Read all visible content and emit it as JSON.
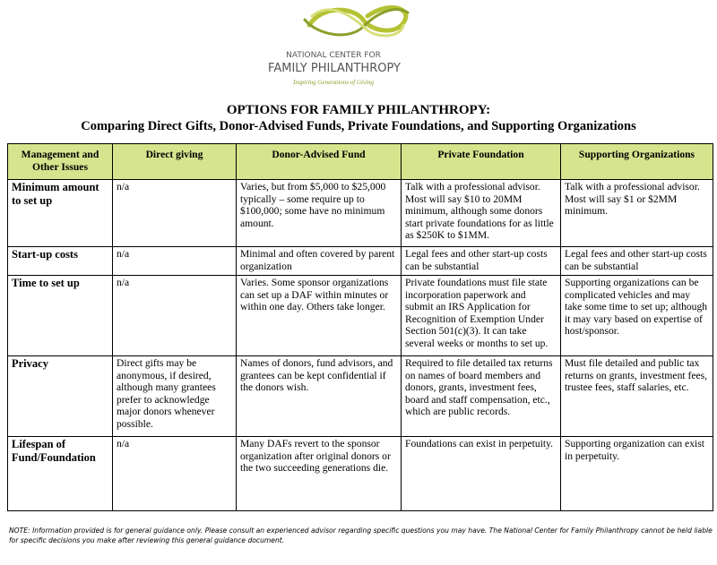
{
  "logo": {
    "line1": "NATIONAL CENTER FOR",
    "line2": "FAMILY PHILANTHROPY",
    "tagline": "Inspiring Generations of Giving"
  },
  "header": {
    "title": "OPTIONS FOR FAMILY PHILANTHROPY:",
    "subtitle": "Comparing Direct Gifts, Donor-Advised Funds, Private Foundations, and Supporting Organizations"
  },
  "table": {
    "columns": [
      "Management and Other Issues",
      "Direct giving",
      "Donor-Advised Fund",
      "Private Foundation",
      "Supporting Organizations"
    ],
    "rows": [
      [
        "Minimum amount to set up",
        "n/a",
        "Varies, but from $5,000 to $25,000 typically – some require up to $100,000; some have no minimum amount.",
        "Talk with a professional advisor. Most will say $10 to 20MM minimum, although some donors start private foundations for as little as $250K to $1MM.",
        "Talk with a professional advisor. Most will say $1 or $2MM minimum."
      ],
      [
        "Start-up costs",
        "n/a",
        "Minimal and often covered by parent organization",
        "Legal fees and other start-up costs can be substantial",
        "Legal fees and other start-up costs can be substantial"
      ],
      [
        "Time to set up",
        "n/a",
        "Varies. Some sponsor organizations can set up a DAF within minutes or within one day. Others take longer.",
        "Private foundations must file state incorporation paperwork and submit an IRS Application for Recognition of Exemption Under Section 501(c)(3). It can take several weeks or months to set up.",
        "Supporting organizations can be complicated vehicles and may take some time to set up; although it may vary based on expertise of host/sponsor."
      ],
      [
        "Privacy",
        "Direct gifts may be anonymous, if desired, although many grantees prefer to acknowledge major donors whenever possible.",
        "Names of donors, fund advisors, and grantees can be kept confidential if the donors wish.",
        "Required to file detailed tax returns on names of board members and donors, grants, investment fees, board and staff compensation, etc., which are public records.",
        "Must file detailed and public tax returns on grants, investment fees, trustee fees, staff salaries, etc."
      ],
      [
        "Lifespan of Fund/Foundation",
        "n/a",
        "Many DAFs revert to the sponsor organization after original donors or the two succeeding generations die.",
        "Foundations can exist in perpetuity.",
        "Supporting organization can exist in perpetuity."
      ]
    ]
  },
  "note": "NOTE: Information provided is for general guidance only. Please consult an experienced advisor regarding specific questions you may have. The National Center for Family Philanthropy cannot be held liable for specific decisions you make after reviewing this general guidance document."
}
